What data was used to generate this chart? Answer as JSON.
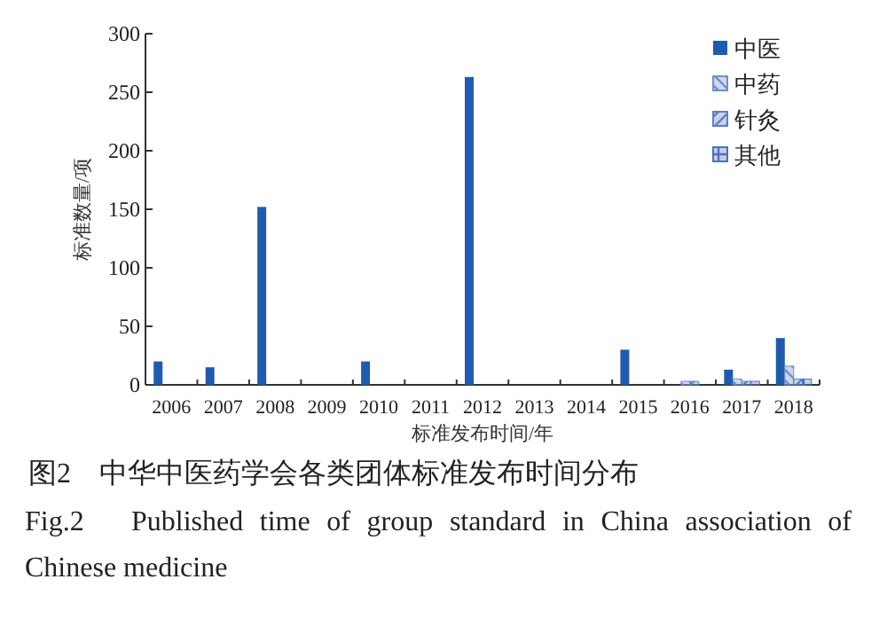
{
  "chart_data": {
    "type": "bar",
    "xlabel": "标准发布时间/年",
    "ylabel": "标准数量/项",
    "categories": [
      "2006",
      "2007",
      "2008",
      "2009",
      "2010",
      "2011",
      "2012",
      "2013",
      "2014",
      "2015",
      "2016",
      "2017",
      "2018"
    ],
    "series": [
      {
        "name": "中医",
        "color": "#1f5cb0",
        "values": [
          20,
          15,
          152,
          0,
          20,
          0,
          263,
          0,
          0,
          30,
          0,
          13,
          40
        ]
      },
      {
        "name": "中药",
        "color": "#6f8fcc",
        "values": [
          0,
          0,
          0,
          0,
          0,
          0,
          0,
          0,
          0,
          0,
          3,
          5,
          16
        ]
      },
      {
        "name": "针灸",
        "color": "#5f7fc2",
        "values": [
          0,
          0,
          0,
          0,
          0,
          0,
          0,
          0,
          0,
          0,
          3,
          3,
          5
        ]
      },
      {
        "name": "其他",
        "color": "#4f6fb8",
        "values": [
          0,
          0,
          0,
          0,
          0,
          0,
          0,
          0,
          0,
          0,
          0,
          3,
          5
        ]
      }
    ],
    "ylim": [
      0,
      300
    ],
    "yticks": [
      0,
      50,
      100,
      150,
      200,
      250,
      300
    ],
    "legend": "top right",
    "grid": false,
    "annotations": [
      "图2　中华中医药学会各类团体标准发布时间分布",
      "Fig.2　Published time of group standard in China association of Chinese medicine"
    ]
  }
}
